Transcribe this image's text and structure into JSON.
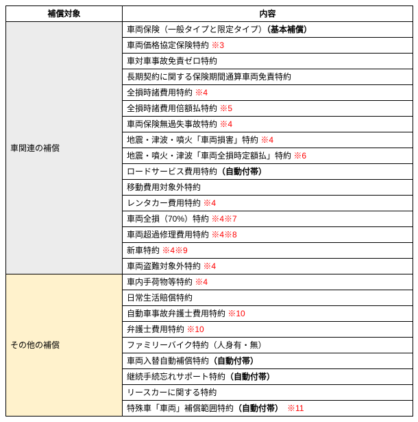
{
  "colors": {
    "border": "#000000",
    "bg_vehicle": "#ececec",
    "bg_other": "#fff2cc",
    "note_red": "#ff0000",
    "bg_page": "#ffffff"
  },
  "headers": {
    "col1": "補償対象",
    "col2": "内容"
  },
  "categories": [
    {
      "label": "車関連の補償",
      "bgClass": "cat-vehicle",
      "rows": [
        {
          "segments": [
            {
              "t": "車両保険（一般タイプと限定タイプ）"
            },
            {
              "t": "（基本補償）",
              "bold": true
            }
          ]
        },
        {
          "segments": [
            {
              "t": "車両価格協定保険特約 "
            },
            {
              "t": "※3",
              "red": true
            }
          ]
        },
        {
          "segments": [
            {
              "t": "車対車事故免責ゼロ特約"
            }
          ]
        },
        {
          "segments": [
            {
              "t": "長期契約に関する保険期間通算車両免責特約"
            }
          ]
        },
        {
          "segments": [
            {
              "t": "全損時諸費用特約 "
            },
            {
              "t": "※4",
              "red": true
            }
          ]
        },
        {
          "segments": [
            {
              "t": "全損時諸費用倍額払特約 "
            },
            {
              "t": "※5",
              "red": true
            }
          ]
        },
        {
          "segments": [
            {
              "t": "車両保険無過失事故特約 "
            },
            {
              "t": "※4",
              "red": true
            }
          ]
        },
        {
          "segments": [
            {
              "t": "地震・津波・噴火「車両損害」特約 "
            },
            {
              "t": "※4",
              "red": true
            }
          ]
        },
        {
          "segments": [
            {
              "t": "地震・噴火・津波「車両全損時定額払」特約 "
            },
            {
              "t": "※6",
              "red": true
            }
          ]
        },
        {
          "segments": [
            {
              "t": "ロードサービス費用特約"
            },
            {
              "t": "（自動付帯）",
              "bold": true
            }
          ]
        },
        {
          "segments": [
            {
              "t": "移動費用対象外特約"
            }
          ]
        },
        {
          "segments": [
            {
              "t": "レンタカー費用特約 "
            },
            {
              "t": "※4",
              "red": true
            }
          ]
        },
        {
          "segments": [
            {
              "t": "車両全損（70%）特約 "
            },
            {
              "t": "※4※7",
              "red": true
            }
          ]
        },
        {
          "segments": [
            {
              "t": "車両超過修理費用特約 "
            },
            {
              "t": "※4※8",
              "red": true
            }
          ]
        },
        {
          "segments": [
            {
              "t": "新車特約 "
            },
            {
              "t": "※4※9",
              "red": true
            }
          ]
        },
        {
          "segments": [
            {
              "t": "車両盗難対象外特約 "
            },
            {
              "t": "※4",
              "red": true
            }
          ]
        }
      ]
    },
    {
      "label": "その他の補償",
      "bgClass": "cat-other",
      "rows": [
        {
          "segments": [
            {
              "t": "車内手荷物等特約 "
            },
            {
              "t": "※4",
              "red": true
            }
          ]
        },
        {
          "segments": [
            {
              "t": "日常生活賠償特約"
            }
          ]
        },
        {
          "segments": [
            {
              "t": "自動車事故弁護士費用特約 "
            },
            {
              "t": "※10",
              "red": true
            }
          ]
        },
        {
          "segments": [
            {
              "t": "弁護士費用特約 "
            },
            {
              "t": "※10",
              "red": true
            }
          ]
        },
        {
          "segments": [
            {
              "t": "ファミリーバイク特約（人身有・無）"
            }
          ]
        },
        {
          "segments": [
            {
              "t": "車両入替自動補償特約"
            },
            {
              "t": "（自動付帯）",
              "bold": true
            }
          ]
        },
        {
          "segments": [
            {
              "t": "継続手続忘れサポート特約"
            },
            {
              "t": "（自動付帯）",
              "bold": true
            }
          ]
        },
        {
          "segments": [
            {
              "t": "リースカーに関する特約"
            }
          ]
        },
        {
          "segments": [
            {
              "t": "特殊車「車両」補償範囲特約"
            },
            {
              "t": "（自動付帯）",
              "bold": true
            },
            {
              "t": "　"
            },
            {
              "t": "※11",
              "red": true
            }
          ]
        }
      ]
    }
  ]
}
